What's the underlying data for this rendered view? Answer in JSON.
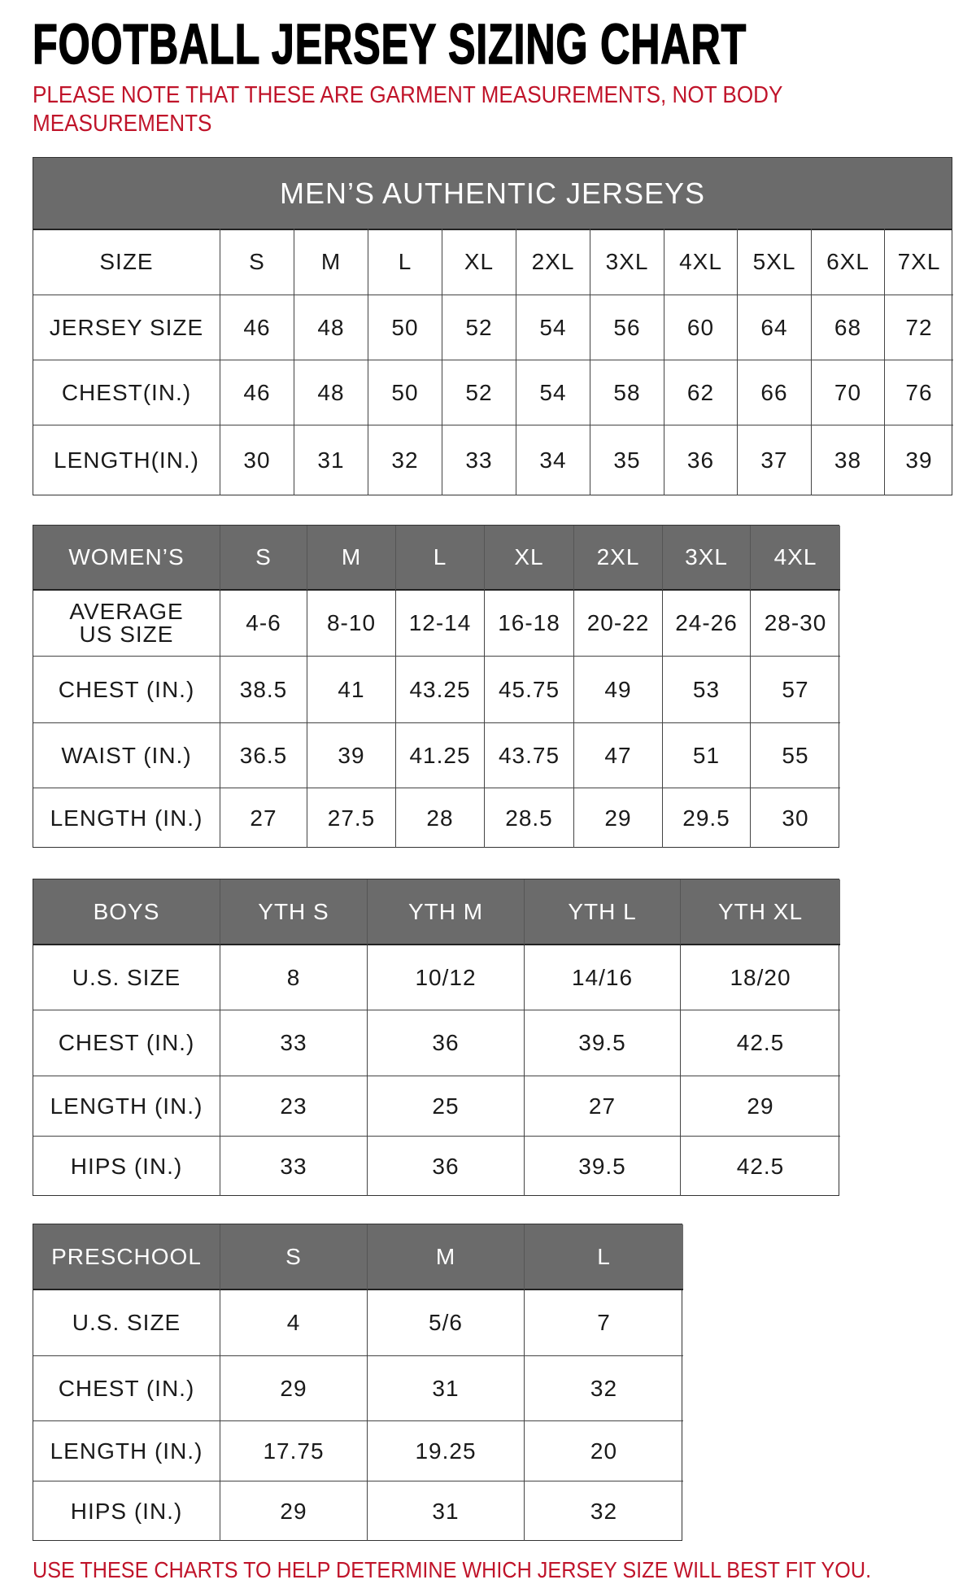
{
  "title": "FOOTBALL JERSEY SIZING CHART",
  "note": "PLEASE NOTE THAT THESE ARE GARMENT MEASUREMENTS, NOT BODY MEASUREMENTS",
  "footer": "USE THESE CHARTS TO HELP DETERMINE WHICH JERSEY SIZE WILL BEST FIT YOU.",
  "colors": {
    "header_bg": "#6b6b6b",
    "note_red": "#c0142a",
    "text": "#1a1a1a"
  },
  "tables": [
    {
      "id": "mens",
      "banner": "MEN’S AUTHENTIC JERSEYS",
      "header_style": "white",
      "header": [
        "SIZE",
        "S",
        "M",
        "L",
        "XL",
        "2XL",
        "3XL",
        "4XL",
        "5XL",
        "6XL",
        "7XL"
      ],
      "rows": [
        [
          "JERSEY SIZE",
          "46",
          "48",
          "50",
          "52",
          "54",
          "56",
          "60",
          "64",
          "68",
          "72"
        ],
        [
          "CHEST(IN.)",
          "46",
          "48",
          "50",
          "52",
          "54",
          "58",
          "62",
          "66",
          "70",
          "76"
        ],
        [
          "LENGTH(IN.)",
          "30",
          "31",
          "32",
          "33",
          "34",
          "35",
          "36",
          "37",
          "38",
          "39"
        ]
      ]
    },
    {
      "id": "womens",
      "header_style": "gray",
      "header": [
        "WOMEN’S",
        "S",
        "M",
        "L",
        "XL",
        "2XL",
        "3XL",
        "4XL"
      ],
      "rows": [
        [
          "AVERAGE US SIZE",
          "4-6",
          "8-10",
          "12-14",
          "16-18",
          "20-22",
          "24-26",
          "28-30"
        ],
        [
          "CHEST (IN.)",
          "38.5",
          "41",
          "43.25",
          "45.75",
          "49",
          "53",
          "57"
        ],
        [
          "WAIST (IN.)",
          "36.5",
          "39",
          "41.25",
          "43.75",
          "47",
          "51",
          "55"
        ],
        [
          "LENGTH (IN.)",
          "27",
          "27.5",
          "28",
          "28.5",
          "29",
          "29.5",
          "30"
        ]
      ]
    },
    {
      "id": "boys",
      "header_style": "gray",
      "header": [
        "BOYS",
        "YTH S",
        "YTH M",
        "YTH L",
        "YTH XL"
      ],
      "rows": [
        [
          "U.S. SIZE",
          "8",
          "10/12",
          "14/16",
          "18/20"
        ],
        [
          "CHEST (IN.)",
          "33",
          "36",
          "39.5",
          "42.5"
        ],
        [
          "LENGTH (IN.)",
          "23",
          "25",
          "27",
          "29"
        ],
        [
          "HIPS (IN.)",
          "33",
          "36",
          "39.5",
          "42.5"
        ]
      ]
    },
    {
      "id": "preschool",
      "header_style": "gray",
      "header": [
        "PRESCHOOL",
        "S",
        "M",
        "L"
      ],
      "rows": [
        [
          "U.S. SIZE",
          "4",
          "5/6",
          "7"
        ],
        [
          "CHEST (IN.)",
          "29",
          "31",
          "32"
        ],
        [
          "LENGTH (IN.)",
          "17.75",
          "19.25",
          "20"
        ],
        [
          "HIPS (IN.)",
          "29",
          "31",
          "32"
        ]
      ]
    }
  ]
}
